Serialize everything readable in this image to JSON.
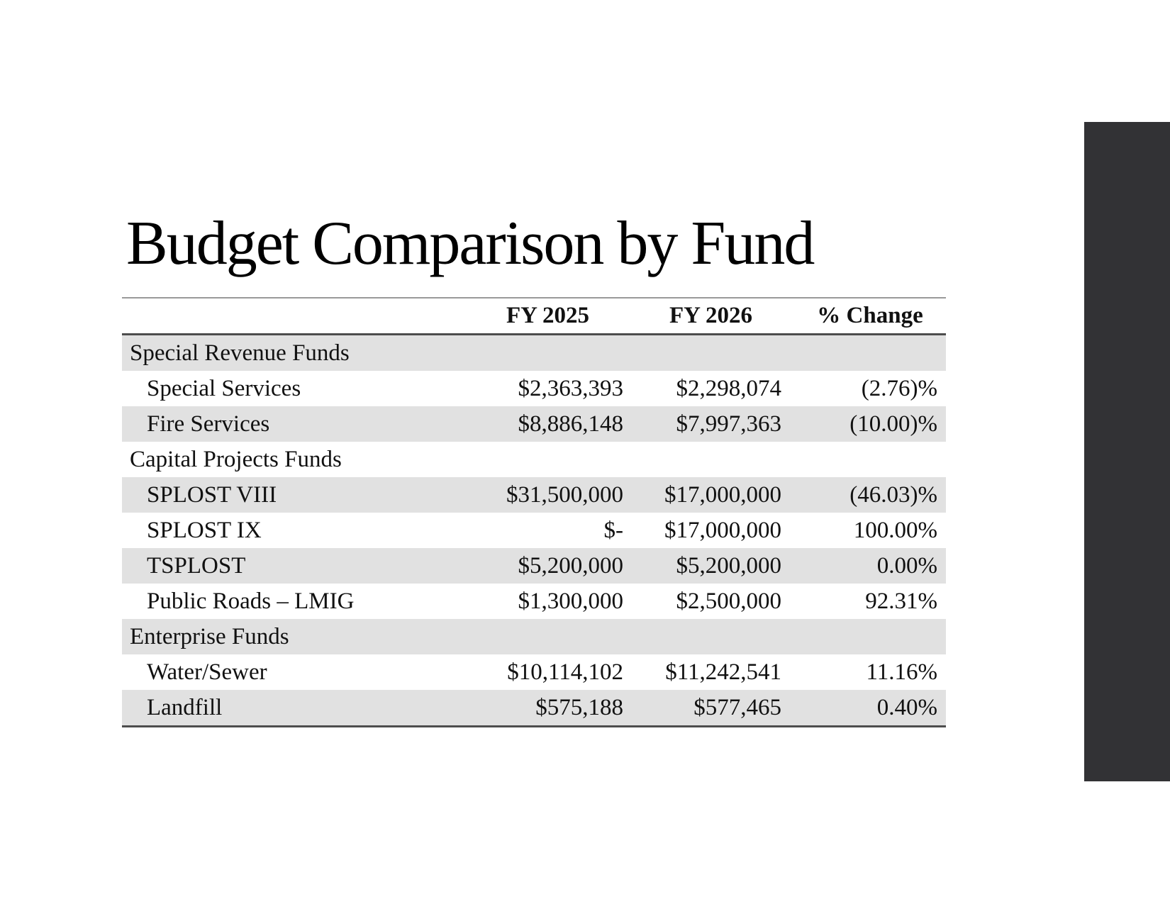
{
  "slide": {
    "title": "Budget Comparison by Fund",
    "accent_bar_color": "#323235",
    "shaded_row_color": "#e1e1e1"
  },
  "table": {
    "header": {
      "fy2025": "FY 2025",
      "fy2026": "FY 2026",
      "change": "% Change"
    },
    "rows": [
      {
        "label": "Special Revenue Funds",
        "type": "category",
        "fy2025": "",
        "fy2026": "",
        "change": ""
      },
      {
        "label": "Special Services",
        "type": "item",
        "fy2025": "$2,363,393",
        "fy2026": "$2,298,074",
        "change": "(2.76)%"
      },
      {
        "label": "Fire Services",
        "type": "item",
        "fy2025": "$8,886,148",
        "fy2026": "$7,997,363",
        "change": "(10.00)%"
      },
      {
        "label": "Capital Projects Funds",
        "type": "category",
        "fy2025": "",
        "fy2026": "",
        "change": ""
      },
      {
        "label": "SPLOST VIII",
        "type": "item",
        "fy2025": "$31,500,000",
        "fy2026": "$17,000,000",
        "change": "(46.03)%"
      },
      {
        "label": "SPLOST IX",
        "type": "item",
        "fy2025": "$-",
        "fy2026": "$17,000,000",
        "change": "100.00%"
      },
      {
        "label": "TSPLOST",
        "type": "item",
        "fy2025": "$5,200,000",
        "fy2026": "$5,200,000",
        "change": "0.00%"
      },
      {
        "label": "Public Roads – LMIG",
        "type": "item",
        "fy2025": "$1,300,000",
        "fy2026": "$2,500,000",
        "change": "92.31%"
      },
      {
        "label": "Enterprise Funds",
        "type": "category",
        "fy2025": "",
        "fy2026": "",
        "change": ""
      },
      {
        "label": "Water/Sewer",
        "type": "item",
        "fy2025": "$10,114,102",
        "fy2026": "$11,242,541",
        "change": "11.16%"
      },
      {
        "label": "Landfill",
        "type": "item",
        "fy2025": "$575,188",
        "fy2026": "$577,465",
        "change": "0.40%"
      }
    ]
  }
}
